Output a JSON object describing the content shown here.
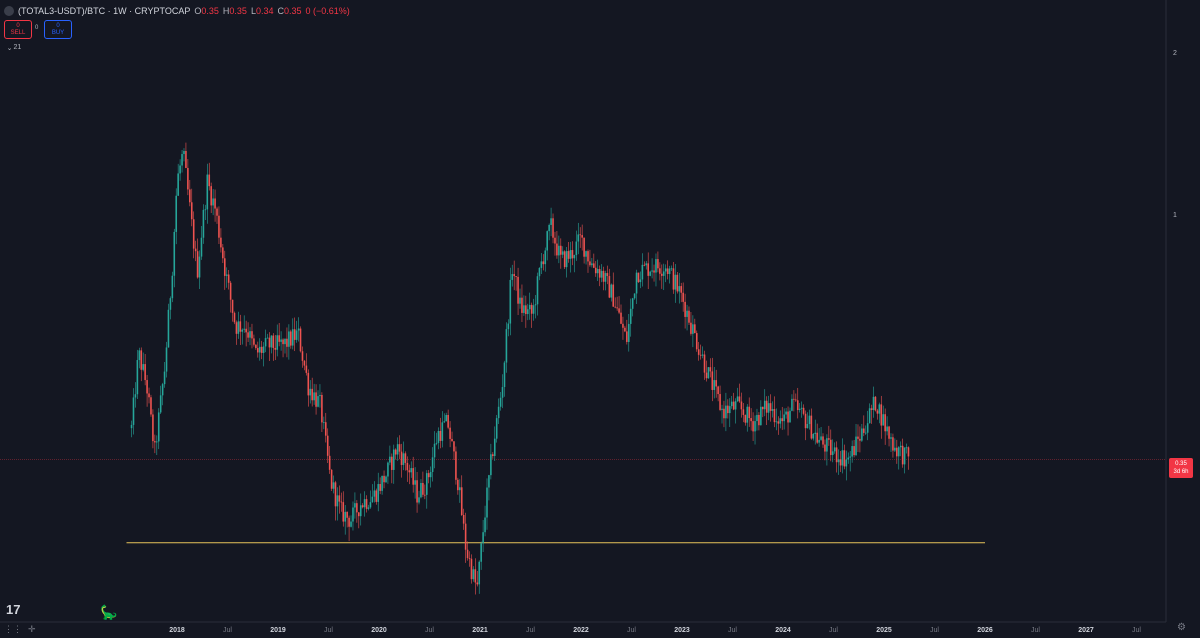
{
  "header": {
    "title": "(TOTAL3-USDT)/BTC · 1W · CRYPTOCAP",
    "ohlc": [
      {
        "k": "O",
        "v": "0.35"
      },
      {
        "k": "H",
        "v": "0.35"
      },
      {
        "k": "L",
        "v": "0.34"
      },
      {
        "k": "C",
        "v": "0.35"
      },
      {
        "k": "",
        "v": "0 (−0.61%)"
      }
    ]
  },
  "trade": {
    "sell_price": "0",
    "sell_label": "SELL",
    "spread": "0",
    "buy_price": "0",
    "buy_label": "BUY"
  },
  "indicator_toggle": "21",
  "price_tag": {
    "price": "0.35",
    "countdown": "3d 6h"
  },
  "branding": {
    "logo": "17"
  },
  "colors": {
    "up": "#26a69a",
    "down": "#ef5350",
    "support": "#e7c45a",
    "background": "#141722",
    "price_line": "#f23645"
  },
  "chart_data": {
    "type": "candlestick",
    "title": "(TOTAL3-USDT)/BTC",
    "interval": "1W",
    "y_scale": "log",
    "y_ticks": [
      1,
      2
    ],
    "y_tick_labels": [
      "1",
      "2"
    ],
    "x_tick_labels": [
      "2018",
      "Jul",
      "2019",
      "Jul",
      "2020",
      "Jul",
      "2021",
      "Jul",
      "2022",
      "Jul",
      "2023",
      "Jul",
      "2024",
      "Jul",
      "2025",
      "Jul",
      "2026",
      "Jul",
      "2027",
      "Jul"
    ],
    "x_ticks": [
      2018.0,
      2018.5,
      2019.0,
      2019.5,
      2020.0,
      2020.5,
      2021.0,
      2021.5,
      2022.0,
      2022.5,
      2023.0,
      2023.5,
      2024.0,
      2024.5,
      2025.0,
      2025.5,
      2026.0,
      2026.5,
      2027.0,
      2027.5
    ],
    "x_range": [
      2016.55,
      2028.0
    ],
    "last_price": 0.35,
    "support_level": 0.245,
    "support_x_range": [
      2017.5,
      2026.0
    ],
    "close_series": [
      [
        2017.55,
        0.4
      ],
      [
        2017.62,
        0.55
      ],
      [
        2017.7,
        0.48
      ],
      [
        2017.78,
        0.36
      ],
      [
        2017.88,
        0.52
      ],
      [
        2017.95,
        0.78
      ],
      [
        2018.0,
        1.15
      ],
      [
        2018.06,
        1.3
      ],
      [
        2018.12,
        1.05
      ],
      [
        2018.2,
        0.78
      ],
      [
        2018.3,
        1.15
      ],
      [
        2018.38,
        1.02
      ],
      [
        2018.48,
        0.78
      ],
      [
        2018.58,
        0.62
      ],
      [
        2018.68,
        0.62
      ],
      [
        2018.78,
        0.55
      ],
      [
        2018.9,
        0.57
      ],
      [
        2019.05,
        0.57
      ],
      [
        2019.2,
        0.6
      ],
      [
        2019.3,
        0.48
      ],
      [
        2019.42,
        0.44
      ],
      [
        2019.52,
        0.32
      ],
      [
        2019.62,
        0.28
      ],
      [
        2019.72,
        0.27
      ],
      [
        2019.82,
        0.29
      ],
      [
        2019.95,
        0.3
      ],
      [
        2020.08,
        0.33
      ],
      [
        2020.18,
        0.37
      ],
      [
        2020.28,
        0.34
      ],
      [
        2020.38,
        0.3
      ],
      [
        2020.48,
        0.32
      ],
      [
        2020.58,
        0.39
      ],
      [
        2020.68,
        0.41
      ],
      [
        2020.78,
        0.32
      ],
      [
        2020.86,
        0.24
      ],
      [
        2020.97,
        0.2
      ],
      [
        2021.05,
        0.28
      ],
      [
        2021.13,
        0.37
      ],
      [
        2021.22,
        0.48
      ],
      [
        2021.32,
        0.8
      ],
      [
        2021.4,
        0.67
      ],
      [
        2021.52,
        0.65
      ],
      [
        2021.6,
        0.8
      ],
      [
        2021.7,
        0.95
      ],
      [
        2021.8,
        0.82
      ],
      [
        2021.9,
        0.84
      ],
      [
        2022.0,
        0.9
      ],
      [
        2022.1,
        0.81
      ],
      [
        2022.2,
        0.78
      ],
      [
        2022.32,
        0.7
      ],
      [
        2022.45,
        0.58
      ],
      [
        2022.55,
        0.78
      ],
      [
        2022.7,
        0.8
      ],
      [
        2022.85,
        0.8
      ],
      [
        2023.0,
        0.7
      ],
      [
        2023.12,
        0.6
      ],
      [
        2023.25,
        0.51
      ],
      [
        2023.4,
        0.43
      ],
      [
        2023.55,
        0.44
      ],
      [
        2023.7,
        0.41
      ],
      [
        2023.85,
        0.44
      ],
      [
        2024.0,
        0.41
      ],
      [
        2024.1,
        0.44
      ],
      [
        2024.25,
        0.41
      ],
      [
        2024.35,
        0.38
      ],
      [
        2024.5,
        0.36
      ],
      [
        2024.65,
        0.35
      ],
      [
        2024.8,
        0.4
      ],
      [
        2024.92,
        0.45
      ],
      [
        2025.02,
        0.4
      ],
      [
        2025.1,
        0.37
      ],
      [
        2025.25,
        0.35
      ]
    ]
  }
}
